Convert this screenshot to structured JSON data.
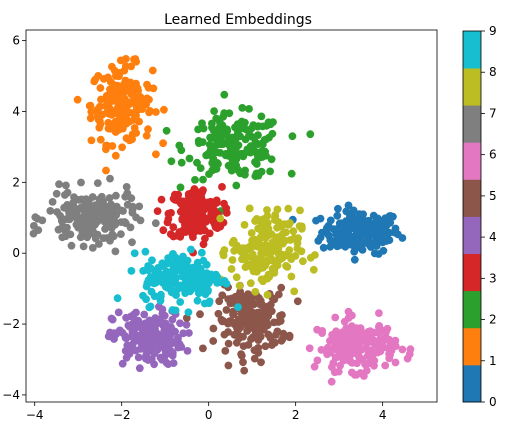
{
  "chart_data": {
    "type": "scatter",
    "title": "Learned Embeddings",
    "xlabel": "",
    "ylabel": "",
    "xlim": [
      -4.2,
      5.25
    ],
    "ylim": [
      -4.2,
      6.3
    ],
    "x_ticks": [
      -4,
      -2,
      0,
      2,
      4
    ],
    "y_ticks": [
      -4,
      -2,
      0,
      2,
      4,
      6
    ],
    "grid": false,
    "colorbar": {
      "ticks": [
        0,
        1,
        2,
        3,
        4,
        5,
        6,
        7,
        8,
        9
      ],
      "colors": [
        "#1f77b4",
        "#ff7f0e",
        "#2ca02c",
        "#d62728",
        "#9467bd",
        "#8c564b",
        "#e377c2",
        "#7f7f7f",
        "#bcbd22",
        "#17becf"
      ]
    },
    "clusters": [
      {
        "label": 0,
        "center": [
          3.5,
          0.6
        ],
        "spread": [
          0.45,
          0.3
        ]
      },
      {
        "label": 1,
        "center": [
          -2.0,
          4.2
        ],
        "spread": [
          0.35,
          0.55
        ]
      },
      {
        "label": 2,
        "center": [
          0.6,
          3.0
        ],
        "spread": [
          0.55,
          0.45
        ]
      },
      {
        "label": 3,
        "center": [
          -0.3,
          1.1
        ],
        "spread": [
          0.3,
          0.38
        ]
      },
      {
        "label": 4,
        "center": [
          -1.4,
          -2.4
        ],
        "spread": [
          0.4,
          0.38
        ]
      },
      {
        "label": 5,
        "center": [
          1.0,
          -1.9
        ],
        "spread": [
          0.4,
          0.45
        ]
      },
      {
        "label": 6,
        "center": [
          3.4,
          -2.6
        ],
        "spread": [
          0.45,
          0.35
        ]
      },
      {
        "label": 7,
        "center": [
          -2.7,
          1.0
        ],
        "spread": [
          0.5,
          0.38
        ]
      },
      {
        "label": 8,
        "center": [
          1.3,
          0.1
        ],
        "spread": [
          0.4,
          0.55
        ]
      },
      {
        "label": 9,
        "center": [
          -0.6,
          -0.7
        ],
        "spread": [
          0.45,
          0.38
        ]
      }
    ]
  }
}
